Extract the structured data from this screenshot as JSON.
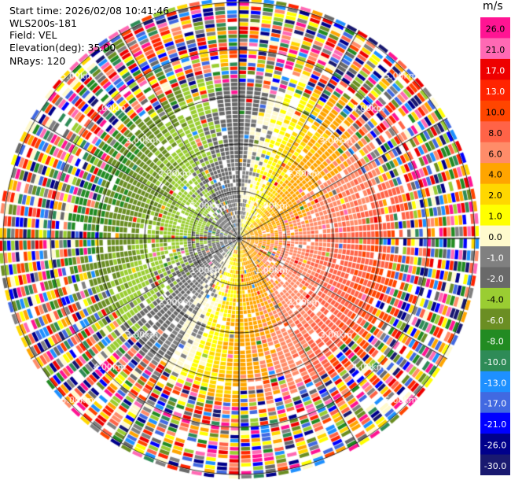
{
  "header": {
    "start_time": "Start time: 2026/02/08 10:41:46",
    "instrument": "WLS200s-181",
    "field": "Field: VEL",
    "elevation": "Elevation(deg): 35.00",
    "nrays": "NRays: 120"
  },
  "chart_data": {
    "type": "ppi-polar-heatmap",
    "field": "VEL",
    "elevation_deg": 35.0,
    "n_rays": 120,
    "range_rings_km": [
      1.0,
      2.0,
      3.0,
      4.0,
      5.0
    ],
    "ring_labels": [
      "1.00km",
      "2.00km",
      "3.00km",
      "4.00km",
      "5.00km"
    ],
    "max_range_km": 5.0,
    "azimuth_lines_deg": [
      0,
      30,
      60,
      90,
      120,
      150,
      180,
      210,
      240,
      270,
      300,
      330
    ],
    "colorbar": {
      "unit": "m/s",
      "tick_labels": [
        "26.0",
        "21.0",
        "17.0",
        "13.0",
        "10.0",
        "8.0",
        "6.0",
        "4.0",
        "2.0",
        "1.0",
        "0.0",
        "-1.0",
        "-2.0",
        "-4.0",
        "-6.0",
        "-8.0",
        "-10.0",
        "-13.0",
        "-17.0",
        "-21.0",
        "-26.0",
        "-30.0"
      ],
      "colors": [
        "#ff1493",
        "#ff69b4",
        "#ee0000",
        "#ff2400",
        "#ff4500",
        "#ff6347",
        "#ff8c69",
        "#ffa500",
        "#ffd700",
        "#ffff00",
        "#fffacd",
        "#808080",
        "#696969",
        "#9acd32",
        "#6b8e23",
        "#228b22",
        "#2e8b57",
        "#1e90ff",
        "#4169e1",
        "#0000ff",
        "#00008b",
        "#191970"
      ]
    },
    "velocity_pattern": {
      "positive_toward_azimuth_deg": 110,
      "near_surface_speed_ms": 5,
      "noise_beyond_km": 3.3
    }
  }
}
